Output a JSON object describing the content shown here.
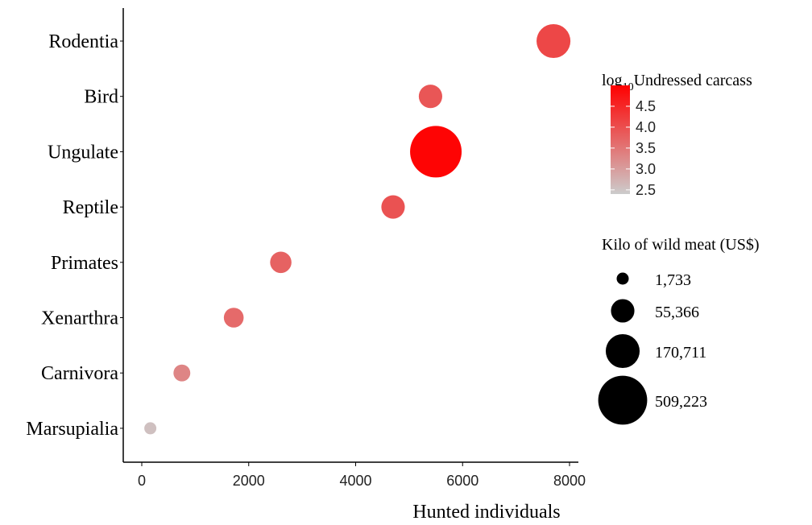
{
  "chart_data": {
    "type": "scatter",
    "xlabel": "Hunted individuals",
    "xlim": [
      -300,
      8300
    ],
    "xticks": [
      0,
      2000,
      4000,
      6000,
      8000
    ],
    "categories": [
      "Marsupialia",
      "Carnivora",
      "Xenarthra",
      "Primates",
      "Reptile",
      "Ungulate",
      "Bird",
      "Rodentia"
    ],
    "points": [
      {
        "category": "Rodentia",
        "x": 7700,
        "log10_undressed_carcass": 4.1,
        "kilo_wild_meat_usd": 170711
      },
      {
        "category": "Bird",
        "x": 5400,
        "log10_undressed_carcass": 3.9,
        "kilo_wild_meat_usd": 55366
      },
      {
        "category": "Ungulate",
        "x": 5500,
        "log10_undressed_carcass": 4.95,
        "kilo_wild_meat_usd": 509223
      },
      {
        "category": "Reptile",
        "x": 4700,
        "log10_undressed_carcass": 3.95,
        "kilo_wild_meat_usd": 55366
      },
      {
        "category": "Primates",
        "x": 2600,
        "log10_undressed_carcass": 3.75,
        "kilo_wild_meat_usd": 40000
      },
      {
        "category": "Xenarthra",
        "x": 1720,
        "log10_undressed_carcass": 3.65,
        "kilo_wild_meat_usd": 30000
      },
      {
        "category": "Carnivora",
        "x": 750,
        "log10_undressed_carcass": 3.3,
        "kilo_wild_meat_usd": 15000
      },
      {
        "category": "Marsupialia",
        "x": 160,
        "log10_undressed_carcass": 2.55,
        "kilo_wild_meat_usd": 1733
      }
    ],
    "color_legend": {
      "title_main": "log",
      "title_sub": "10",
      "title_rest": "Undressed carcass",
      "min": 2.4,
      "max": 5.0,
      "ticks": [
        2.5,
        3.0,
        3.5,
        4.0,
        4.5
      ],
      "tick_labels": [
        "2.5",
        "3.0",
        "3.5",
        "4.0",
        "4.5"
      ],
      "low_color": "#cccccc",
      "high_color": "#ff0000"
    },
    "size_legend": {
      "title": "Kilo of wild meat (US$)",
      "values": [
        1733,
        55366,
        170711,
        509223
      ],
      "labels": [
        "1,733",
        "55,366",
        "170,711",
        "509,223"
      ]
    }
  }
}
